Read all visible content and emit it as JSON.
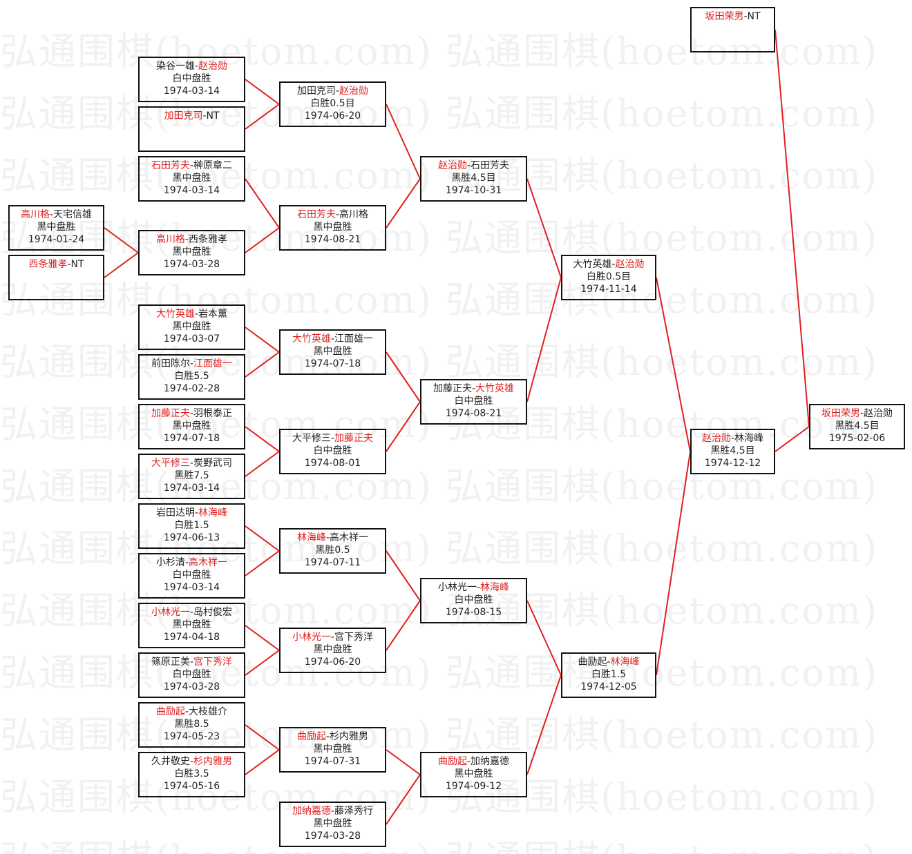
{
  "watermark": "弘通围棋(hoetom.com)",
  "colors": {
    "winner": "#e02020",
    "line": "#e02020",
    "border": "#111111"
  },
  "columns": [
    [
      {
        "p1": "高川格",
        "p2": "天宅信雄",
        "winner": 1,
        "result": "黑中盘胜",
        "date": "1974-01-24"
      },
      {
        "p1": "西条雅孝",
        "p2": "NT",
        "winner": 1,
        "result": "",
        "date": ""
      }
    ],
    [
      {
        "p1": "染谷一雄",
        "p2": "赵治勋",
        "winner": 2,
        "result": "白中盘胜",
        "date": "1974-03-14"
      },
      {
        "p1": "加田克司",
        "p2": "NT",
        "winner": 1,
        "result": "",
        "date": ""
      },
      {
        "p1": "石田芳夫",
        "p2": "榊原章二",
        "winner": 1,
        "result": "黑中盘胜",
        "date": "1974-03-14"
      },
      {
        "p1": "高川格",
        "p2": "西条雅孝",
        "winner": 1,
        "result": "黑中盘胜",
        "date": "1974-03-28"
      },
      {
        "p1": "大竹英雄",
        "p2": "岩本薰",
        "winner": 1,
        "result": "黑中盘胜",
        "date": "1974-03-07"
      },
      {
        "p1": "前田陈尔",
        "p2": "江面雄一",
        "winner": 2,
        "result": "白胜5.5",
        "date": "1974-02-28"
      },
      {
        "p1": "加藤正夫",
        "p2": "羽根泰正",
        "winner": 1,
        "result": "黑中盘胜",
        "date": "1974-07-18"
      },
      {
        "p1": "大平修三",
        "p2": "炭野武司",
        "winner": 1,
        "result": "黑胜7.5",
        "date": "1974-03-14"
      },
      {
        "p1": "岩田达明",
        "p2": "林海峰",
        "winner": 2,
        "result": "白胜1.5",
        "date": "1974-06-13"
      },
      {
        "p1": "小杉清",
        "p2": "高木祥一",
        "winner": 2,
        "result": "白中盘胜",
        "date": "1974-03-14"
      },
      {
        "p1": "小林光一",
        "p2": "岛村俊宏",
        "winner": 1,
        "result": "黑中盘胜",
        "date": "1974-04-18"
      },
      {
        "p1": "篠原正美",
        "p2": "宫下秀洋",
        "winner": 2,
        "result": "白中盘胜",
        "date": "1974-03-28"
      },
      {
        "p1": "曲励起",
        "p2": "大枝雄介",
        "winner": 1,
        "result": "黑胜8.5",
        "date": "1974-05-23"
      },
      {
        "p1": "久井敬史",
        "p2": "杉内雅男",
        "winner": 2,
        "result": "白胜3.5",
        "date": "1974-05-16"
      }
    ],
    [
      {
        "p1": "加田克司",
        "p2": "赵治勋",
        "winner": 2,
        "result": "白胜0.5目",
        "date": "1974-06-20"
      },
      {
        "p1": "石田芳夫",
        "p2": "高川格",
        "winner": 1,
        "result": "黑中盘胜",
        "date": "1974-08-21"
      },
      {
        "p1": "大竹英雄",
        "p2": "江面雄一",
        "winner": 1,
        "result": "黑中盘胜",
        "date": "1974-07-18"
      },
      {
        "p1": "大平修三",
        "p2": "加藤正夫",
        "winner": 2,
        "result": "白中盘胜",
        "date": "1974-08-01"
      },
      {
        "p1": "林海峰",
        "p2": "高木祥一",
        "winner": 1,
        "result": "黑胜0.5",
        "date": "1974-07-11"
      },
      {
        "p1": "小林光一",
        "p2": "宫下秀洋",
        "winner": 1,
        "result": "黑中盘胜",
        "date": "1974-06-20"
      },
      {
        "p1": "曲励起",
        "p2": "杉内雅男",
        "winner": 1,
        "result": "黑中盘胜",
        "date": "1974-07-31"
      },
      {
        "p1": "加纳嘉德",
        "p2": "藤泽秀行",
        "winner": 1,
        "result": "黑中盘胜",
        "date": "1974-03-28"
      }
    ],
    [
      {
        "p1": "赵治勋",
        "p2": "石田芳夫",
        "winner": 1,
        "result": "黑胜4.5目",
        "date": "1974-10-31"
      },
      {
        "p1": "加藤正夫",
        "p2": "大竹英雄",
        "winner": 2,
        "result": "白中盘胜",
        "date": "1974-08-21"
      },
      {
        "p1": "小林光一",
        "p2": "林海峰",
        "winner": 2,
        "result": "白中盘胜",
        "date": "1974-08-15"
      },
      {
        "p1": "曲励起",
        "p2": "加纳嘉德",
        "winner": 1,
        "result": "黑中盘胜",
        "date": "1974-09-12"
      }
    ],
    [
      {
        "p1": "大竹英雄",
        "p2": "赵治勋",
        "winner": 2,
        "result": "白胜0.5目",
        "date": "1974-11-14"
      },
      {
        "p1": "曲励起",
        "p2": "林海峰",
        "winner": 2,
        "result": "白胜1.5",
        "date": "1974-12-05"
      }
    ],
    [
      {
        "p1": "坂田荣男",
        "p2": "NT",
        "winner": 1,
        "result": "",
        "date": ""
      },
      {
        "p1": "赵治勋",
        "p2": "林海峰",
        "winner": 1,
        "result": "黑胜4.5目",
        "date": "1974-12-12"
      }
    ],
    [
      {
        "p1": "坂田荣男",
        "p2": "赵治勋",
        "winner": 1,
        "result": "黑胜4.5目",
        "date": "1975-02-06"
      }
    ]
  ]
}
